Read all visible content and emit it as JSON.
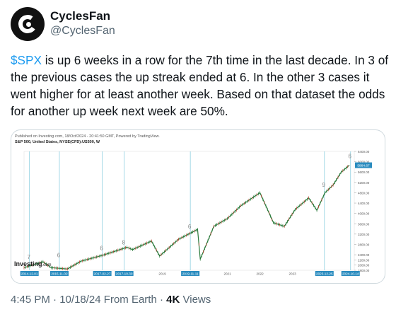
{
  "author": {
    "display_name": "CyclesFan",
    "handle": "@CyclesFan",
    "avatar_icon": "cycles-logo-icon"
  },
  "tweet": {
    "cashtag": "$SPX",
    "text": " is up 6 weeks in a row for the 7th time in the last decade. In 3 of the previous cases the up streak ended at 6. In the other 3 cases it went higher for at least another week. Based on that dataset the odds for another up week next week are 50%."
  },
  "meta": {
    "time": "4:45 PM",
    "date": "10/18/24",
    "source": "From Earth",
    "views_count": "4K",
    "views_label": "Views"
  },
  "chart_data": {
    "type": "line",
    "published_line": "Published on Investing.com, 18/Oct/2024 - 20:41:50 GMT, Powered by TradingView.",
    "title": "S&P 500, United States, NYSE(CFD):US500, W",
    "logo_text": "Investing",
    "logo_suffix": ".com",
    "y_ticks": [
      "6400.00",
      "6000.00",
      "5600.00",
      "5200.00",
      "4800.00",
      "4400.00",
      "4000.00",
      "3600.00",
      "3200.00",
      "2800.00",
      "2400.00",
      "2200.00",
      "2000.00",
      "1800.00"
    ],
    "last_price_label": "5864.67",
    "x_ticks": [
      "2015",
      "2016",
      "2017",
      "2018",
      "2019",
      "2020",
      "2021",
      "2022",
      "2023",
      "2024"
    ],
    "highlighted_dates": [
      "2014-12-01",
      "2015-11-02",
      "2017-02-27",
      "2017-10-30",
      "2019-11-11",
      "2023-12-25",
      "2024-10-14"
    ],
    "streak_labels": [
      "7",
      "6",
      "6",
      "8",
      "6",
      "9",
      "6"
    ],
    "x": [
      "2014-10",
      "2015-05",
      "2015-08",
      "2016-02",
      "2016-07",
      "2017-03",
      "2017-12",
      "2018-02",
      "2018-09",
      "2018-12",
      "2019-07",
      "2020-02",
      "2020-03",
      "2020-08",
      "2021-01",
      "2021-06",
      "2022-01",
      "2022-06",
      "2022-10",
      "2023-02",
      "2023-07",
      "2023-10",
      "2024-01",
      "2024-04",
      "2024-07",
      "2024-10"
    ],
    "values": [
      1900,
      2130,
      1900,
      1850,
      2150,
      2380,
      2690,
      2600,
      2930,
      2350,
      3000,
      3380,
      2230,
      3500,
      3800,
      4300,
      4800,
      3640,
      3500,
      4150,
      4600,
      4120,
      4800,
      5100,
      5600,
      5865
    ],
    "ylim": [
      1800,
      6400
    ],
    "colors": {
      "price": "#2a7a3b",
      "price_down": "#c0392b",
      "marker_line": "#8ecfe0",
      "label": "#444444",
      "annotation": "#888888"
    }
  }
}
